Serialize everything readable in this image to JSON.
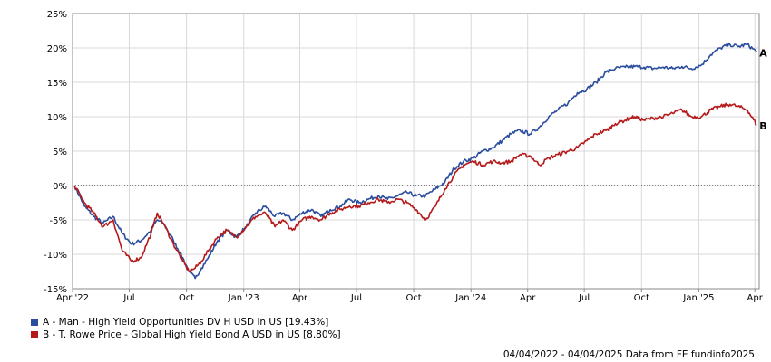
{
  "chart_data": {
    "type": "line",
    "y_unit": "%",
    "ylim": [
      -15,
      25
    ],
    "y_ticks": [
      25,
      20,
      15,
      10,
      5,
      0,
      -5,
      -10,
      -15
    ],
    "y_tick_labels": [
      "25%",
      "20%",
      "15%",
      "10%",
      "5%",
      "0%",
      "-5%",
      "-10%",
      "-15%"
    ],
    "x_tick_labels": [
      "Apr '22",
      "Jul",
      "Oct",
      "Jan '23",
      "Apr",
      "Jul",
      "Oct",
      "Jan '24",
      "Apr",
      "Jul",
      "Oct",
      "Jan '25",
      "Apr"
    ],
    "x_tick_dates": [
      "2022-04-01",
      "2022-07-01",
      "2022-10-01",
      "2023-01-01",
      "2023-04-01",
      "2023-07-01",
      "2023-10-01",
      "2024-01-01",
      "2024-04-01",
      "2024-07-01",
      "2024-10-01",
      "2025-01-01",
      "2025-04-01"
    ],
    "grid": true,
    "zero_line": "dotted",
    "legend_position": "bottom-left",
    "series": [
      {
        "id": "A",
        "name": "A - Man - High Yield Opportunities DV H USD in US [19.43%]",
        "color": "#2a4d9e",
        "end_label": "A",
        "data": [
          [
            "2022-04-04",
            0
          ],
          [
            "2022-04-20",
            -3.0
          ],
          [
            "2022-05-05",
            -4.5
          ],
          [
            "2022-05-20",
            -5.5
          ],
          [
            "2022-06-05",
            -4.5
          ],
          [
            "2022-06-20",
            -7.0
          ],
          [
            "2022-07-05",
            -8.5
          ],
          [
            "2022-07-20",
            -8.0
          ],
          [
            "2022-08-05",
            -6.5
          ],
          [
            "2022-08-15",
            -5.0
          ],
          [
            "2022-08-25",
            -5.5
          ],
          [
            "2022-09-10",
            -8.0
          ],
          [
            "2022-09-25",
            -10.5
          ],
          [
            "2022-10-05",
            -12.5
          ],
          [
            "2022-10-15",
            -13.5
          ],
          [
            "2022-10-25",
            -12.0
          ],
          [
            "2022-11-05",
            -10.5
          ],
          [
            "2022-11-20",
            -8.0
          ],
          [
            "2022-12-05",
            -6.5
          ],
          [
            "2022-12-20",
            -7.5
          ],
          [
            "2023-01-05",
            -6.0
          ],
          [
            "2023-01-20",
            -4.0
          ],
          [
            "2023-02-05",
            -3.0
          ],
          [
            "2023-02-20",
            -4.5
          ],
          [
            "2023-03-05",
            -4.0
          ],
          [
            "2023-03-20",
            -5.0
          ],
          [
            "2023-04-05",
            -4.0
          ],
          [
            "2023-04-20",
            -3.5
          ],
          [
            "2023-05-05",
            -4.5
          ],
          [
            "2023-05-20",
            -3.5
          ],
          [
            "2023-06-05",
            -3.0
          ],
          [
            "2023-06-20",
            -2.0
          ],
          [
            "2023-07-05",
            -2.5
          ],
          [
            "2023-07-20",
            -2.0
          ],
          [
            "2023-08-05",
            -1.5
          ],
          [
            "2023-08-20",
            -2.0
          ],
          [
            "2023-09-05",
            -1.5
          ],
          [
            "2023-09-20",
            -1.0
          ],
          [
            "2023-10-05",
            -1.5
          ],
          [
            "2023-10-20",
            -1.5
          ],
          [
            "2023-11-05",
            -0.5
          ],
          [
            "2023-11-20",
            0.5
          ],
          [
            "2023-12-05",
            2.5
          ],
          [
            "2023-12-20",
            3.5
          ],
          [
            "2024-01-05",
            4.0
          ],
          [
            "2024-01-20",
            5.0
          ],
          [
            "2024-02-05",
            5.5
          ],
          [
            "2024-02-20",
            6.5
          ],
          [
            "2024-03-05",
            7.5
          ],
          [
            "2024-03-20",
            8.0
          ],
          [
            "2024-04-05",
            7.5
          ],
          [
            "2024-04-20",
            8.5
          ],
          [
            "2024-05-05",
            10.0
          ],
          [
            "2024-05-20",
            11.0
          ],
          [
            "2024-06-05",
            12.0
          ],
          [
            "2024-06-20",
            13.5
          ],
          [
            "2024-07-05",
            14.0
          ],
          [
            "2024-07-20",
            15.0
          ],
          [
            "2024-08-05",
            16.5
          ],
          [
            "2024-08-20",
            17.0
          ],
          [
            "2024-09-05",
            17.2
          ],
          [
            "2024-09-20",
            17.3
          ],
          [
            "2024-10-05",
            17.2
          ],
          [
            "2024-10-20",
            17.0
          ],
          [
            "2024-11-05",
            17.2
          ],
          [
            "2024-11-20",
            17.0
          ],
          [
            "2024-12-05",
            17.3
          ],
          [
            "2024-12-20",
            17.0
          ],
          [
            "2025-01-05",
            17.5
          ],
          [
            "2025-01-20",
            19.0
          ],
          [
            "2025-02-05",
            20.0
          ],
          [
            "2025-02-20",
            20.5
          ],
          [
            "2025-03-05",
            20.2
          ],
          [
            "2025-03-20",
            20.5
          ],
          [
            "2025-04-04",
            19.43
          ]
        ]
      },
      {
        "id": "B",
        "name": "B - T. Rowe Price - Global High Yield Bond A USD in US [8.80%]",
        "color": "#b51a1a",
        "end_label": "B",
        "data": [
          [
            "2022-04-04",
            0
          ],
          [
            "2022-04-20",
            -2.5
          ],
          [
            "2022-05-05",
            -4.0
          ],
          [
            "2022-05-20",
            -6.0
          ],
          [
            "2022-06-05",
            -5.0
          ],
          [
            "2022-06-20",
            -9.5
          ],
          [
            "2022-07-05",
            -11.0
          ],
          [
            "2022-07-20",
            -10.5
          ],
          [
            "2022-08-05",
            -7.0
          ],
          [
            "2022-08-15",
            -4.0
          ],
          [
            "2022-08-25",
            -5.5
          ],
          [
            "2022-09-10",
            -8.5
          ],
          [
            "2022-09-25",
            -11.0
          ],
          [
            "2022-10-05",
            -12.5
          ],
          [
            "2022-10-15",
            -12.0
          ],
          [
            "2022-10-25",
            -11.0
          ],
          [
            "2022-11-05",
            -9.5
          ],
          [
            "2022-11-20",
            -7.5
          ],
          [
            "2022-12-05",
            -6.5
          ],
          [
            "2022-12-20",
            -7.5
          ],
          [
            "2023-01-05",
            -6.0
          ],
          [
            "2023-01-20",
            -4.5
          ],
          [
            "2023-02-05",
            -4.0
          ],
          [
            "2023-02-20",
            -6.0
          ],
          [
            "2023-03-05",
            -5.0
          ],
          [
            "2023-03-20",
            -6.5
          ],
          [
            "2023-04-05",
            -5.0
          ],
          [
            "2023-04-20",
            -4.5
          ],
          [
            "2023-05-05",
            -5.0
          ],
          [
            "2023-05-20",
            -4.0
          ],
          [
            "2023-06-05",
            -3.5
          ],
          [
            "2023-06-20",
            -3.0
          ],
          [
            "2023-07-05",
            -3.0
          ],
          [
            "2023-07-20",
            -2.5
          ],
          [
            "2023-08-05",
            -2.0
          ],
          [
            "2023-08-20",
            -2.5
          ],
          [
            "2023-09-05",
            -2.0
          ],
          [
            "2023-09-20",
            -2.5
          ],
          [
            "2023-10-05",
            -3.5
          ],
          [
            "2023-10-20",
            -5.0
          ],
          [
            "2023-11-05",
            -3.0
          ],
          [
            "2023-11-20",
            -0.5
          ],
          [
            "2023-12-05",
            1.5
          ],
          [
            "2023-12-20",
            3.0
          ],
          [
            "2024-01-05",
            3.5
          ],
          [
            "2024-01-20",
            3.0
          ],
          [
            "2024-02-05",
            3.5
          ],
          [
            "2024-02-20",
            3.3
          ],
          [
            "2024-03-05",
            3.5
          ],
          [
            "2024-03-20",
            4.5
          ],
          [
            "2024-04-05",
            4.3
          ],
          [
            "2024-04-20",
            3.0
          ],
          [
            "2024-05-05",
            4.0
          ],
          [
            "2024-05-20",
            4.5
          ],
          [
            "2024-06-05",
            5.0
          ],
          [
            "2024-06-20",
            5.5
          ],
          [
            "2024-07-05",
            6.5
          ],
          [
            "2024-07-20",
            7.5
          ],
          [
            "2024-08-05",
            8.0
          ],
          [
            "2024-08-20",
            9.0
          ],
          [
            "2024-09-05",
            9.5
          ],
          [
            "2024-09-20",
            10.0
          ],
          [
            "2024-10-05",
            9.5
          ],
          [
            "2024-10-20",
            9.8
          ],
          [
            "2024-11-05",
            10.0
          ],
          [
            "2024-11-20",
            10.5
          ],
          [
            "2024-12-05",
            11.0
          ],
          [
            "2024-12-20",
            10.0
          ],
          [
            "2025-01-05",
            10.0
          ],
          [
            "2025-01-20",
            11.0
          ],
          [
            "2025-02-05",
            11.5
          ],
          [
            "2025-02-20",
            11.8
          ],
          [
            "2025-03-05",
            11.5
          ],
          [
            "2025-03-20",
            11.0
          ],
          [
            "2025-04-04",
            8.8
          ]
        ]
      }
    ]
  },
  "footer": "04/04/2022 - 04/04/2025 Data from FE fundinfo2025"
}
